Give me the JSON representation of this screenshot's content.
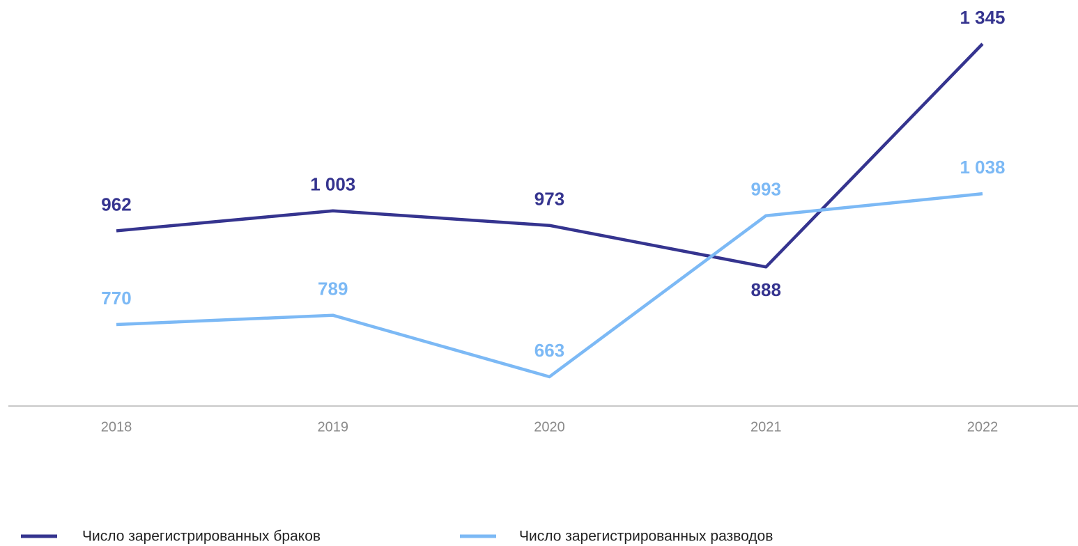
{
  "chart_data": {
    "type": "line",
    "categories": [
      "2018",
      "2019",
      "2020",
      "2021",
      "2022"
    ],
    "series": [
      {
        "name": "Число зарегистрированных браков",
        "color": "#35348f",
        "values": [
          962,
          1003,
          973,
          888,
          1345
        ],
        "value_labels": [
          "962",
          "1 003",
          "973",
          "888",
          "1 345"
        ]
      },
      {
        "name": "Число зарегистрированных разводов",
        "color": "#7cb9f5",
        "values": [
          770,
          789,
          663,
          993,
          1038
        ],
        "value_labels": [
          "770",
          "789",
          "663",
          "993",
          "1 038"
        ]
      }
    ],
    "legend": "bottom-left"
  }
}
